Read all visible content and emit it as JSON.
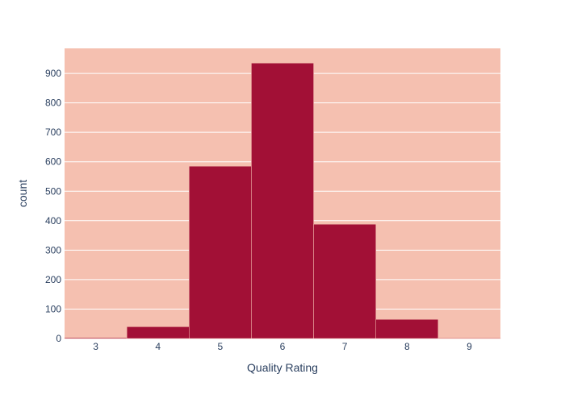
{
  "chart_data": {
    "type": "bar",
    "title": "",
    "xlabel": "Quality Rating",
    "ylabel": "count",
    "categories": [
      "3",
      "4",
      "5",
      "6",
      "7",
      "8",
      "9"
    ],
    "values": [
      3,
      40,
      585,
      935,
      388,
      65,
      2
    ],
    "xlim": [
      2.5,
      9.5
    ],
    "ylim": [
      0,
      985
    ],
    "yticks": [
      0,
      100,
      200,
      300,
      400,
      500,
      600,
      700,
      800,
      900
    ],
    "grid": true,
    "legend": "none",
    "colors": {
      "bar": "#a21036",
      "plot_background": "#f5c0b0",
      "gridline": "#ffffff",
      "text": "#2a3f5f"
    }
  }
}
